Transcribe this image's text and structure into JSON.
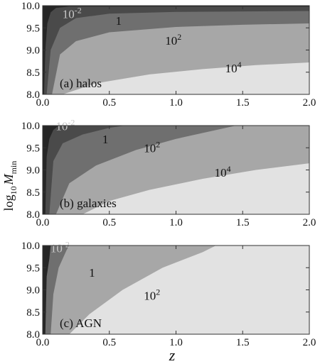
{
  "chart_data": [
    {
      "type": "contour",
      "panel": "(a) halos",
      "xlim": [
        0.0,
        2.0
      ],
      "ylim": [
        8.0,
        10.0
      ],
      "xticks": [
        "0.0",
        "0.5",
        "1.0",
        "1.5",
        "2.0"
      ],
      "yticks": [
        "8.0",
        "8.5",
        "9.0",
        "9.5",
        "10.0"
      ],
      "contour_levels": [
        {
          "label_base": "10",
          "label_exp": "-2",
          "at": [
            0.22,
            9.72
          ]
        },
        {
          "label_base": "1",
          "label_exp": "",
          "at": [
            0.57,
            9.57
          ]
        },
        {
          "label_base": "10",
          "label_exp": "2",
          "at": [
            0.98,
            9.12
          ]
        },
        {
          "label_base": "10",
          "label_exp": "4",
          "at": [
            1.43,
            8.5
          ]
        }
      ],
      "contours": [
        [
          [
            0.01,
            8.0
          ],
          [
            0.02,
            9.0
          ],
          [
            0.035,
            9.6
          ],
          [
            0.06,
            9.85
          ],
          [
            0.1,
            9.95
          ],
          [
            0.2,
            9.98
          ],
          [
            2.0,
            9.98
          ]
        ],
        [
          [
            0.03,
            8.0
          ],
          [
            0.06,
            9.0
          ],
          [
            0.13,
            9.5
          ],
          [
            0.25,
            9.72
          ],
          [
            0.5,
            9.82
          ],
          [
            1.0,
            9.86
          ],
          [
            2.0,
            9.88
          ]
        ],
        [
          [
            0.07,
            8.0
          ],
          [
            0.13,
            8.9
          ],
          [
            0.25,
            9.2
          ],
          [
            0.5,
            9.4
          ],
          [
            1.0,
            9.52
          ],
          [
            1.5,
            9.57
          ],
          [
            2.0,
            9.6
          ]
        ],
        [
          [
            0.15,
            8.0
          ],
          [
            0.4,
            8.25
          ],
          [
            0.8,
            8.45
          ],
          [
            1.2,
            8.57
          ],
          [
            1.6,
            8.66
          ],
          [
            2.0,
            8.72
          ]
        ]
      ]
    },
    {
      "type": "contour",
      "panel": "(b) galaxies",
      "xlim": [
        0.0,
        2.0
      ],
      "ylim": [
        8.0,
        10.0
      ],
      "xticks": [
        "0.0",
        "0.5",
        "1.0",
        "1.5",
        "2.0"
      ],
      "yticks": [
        "8.0",
        "8.5",
        "9.0",
        "9.5",
        "10.0"
      ],
      "contour_levels": [
        {
          "label_base": "10",
          "label_exp": "-2",
          "at": [
            0.17,
            9.9
          ]
        },
        {
          "label_base": "1",
          "label_exp": "",
          "at": [
            0.47,
            9.6
          ]
        },
        {
          "label_base": "10",
          "label_exp": "2",
          "at": [
            0.82,
            9.4
          ]
        },
        {
          "label_base": "10",
          "label_exp": "4",
          "at": [
            1.35,
            8.85
          ]
        }
      ],
      "contours": [
        [
          [
            0.02,
            8.0
          ],
          [
            0.03,
            9.3
          ],
          [
            0.05,
            9.7
          ],
          [
            0.08,
            9.9
          ],
          [
            0.12,
            10.0
          ]
        ],
        [
          [
            0.05,
            8.0
          ],
          [
            0.08,
            9.2
          ],
          [
            0.15,
            9.6
          ],
          [
            0.3,
            9.8
          ],
          [
            0.5,
            9.95
          ],
          [
            0.62,
            10.0
          ]
        ],
        [
          [
            0.1,
            8.0
          ],
          [
            0.2,
            8.7
          ],
          [
            0.4,
            9.1
          ],
          [
            0.7,
            9.45
          ],
          [
            1.0,
            9.7
          ],
          [
            1.3,
            9.9
          ],
          [
            1.45,
            10.0
          ]
        ],
        [
          [
            0.3,
            8.0
          ],
          [
            0.5,
            8.3
          ],
          [
            0.8,
            8.55
          ],
          [
            1.2,
            8.8
          ],
          [
            1.6,
            9.0
          ],
          [
            2.0,
            9.15
          ]
        ]
      ]
    },
    {
      "type": "contour",
      "panel": "(c) AGN",
      "xlim": [
        0.0,
        2.0
      ],
      "ylim": [
        8.0,
        10.0
      ],
      "xticks": [
        "0.0",
        "0.5",
        "1.0",
        "1.5",
        "2.0"
      ],
      "yticks": [
        "8.0",
        "8.5",
        "9.0",
        "9.5",
        "10.0"
      ],
      "contour_levels": [
        {
          "label_base": "10",
          "label_exp": "-2",
          "at": [
            0.13,
            9.85
          ]
        },
        {
          "label_base": "1",
          "label_exp": "",
          "at": [
            0.37,
            9.3
          ]
        },
        {
          "label_base": "10",
          "label_exp": "2",
          "at": [
            0.82,
            8.78
          ]
        }
      ],
      "contours": [
        [
          [
            0.02,
            8.0
          ],
          [
            0.03,
            9.3
          ],
          [
            0.05,
            9.7
          ],
          [
            0.06,
            10.0
          ]
        ],
        [
          [
            0.06,
            8.0
          ],
          [
            0.08,
            8.9
          ],
          [
            0.12,
            9.5
          ],
          [
            0.18,
            9.9
          ],
          [
            0.2,
            10.0
          ]
        ],
        [
          [
            0.2,
            8.0
          ],
          [
            0.35,
            8.45
          ],
          [
            0.6,
            9.0
          ],
          [
            0.9,
            9.5
          ],
          [
            1.2,
            9.85
          ],
          [
            1.3,
            10.0
          ]
        ]
      ]
    }
  ],
  "axes": {
    "xlabel": "z",
    "ylabel_prefix": "log",
    "ylabel_sub": "10",
    "ylabel_var": "M",
    "ylabel_var_sub": "min"
  },
  "colors": {
    "band_fills": [
      "#262626",
      "#4a4a4a",
      "#6f6f6f",
      "#a7a7a7",
      "#e2e2e2"
    ],
    "label_on_dark": "#c8c8c8",
    "label_on_light": "#111111",
    "axis": "#333333"
  }
}
